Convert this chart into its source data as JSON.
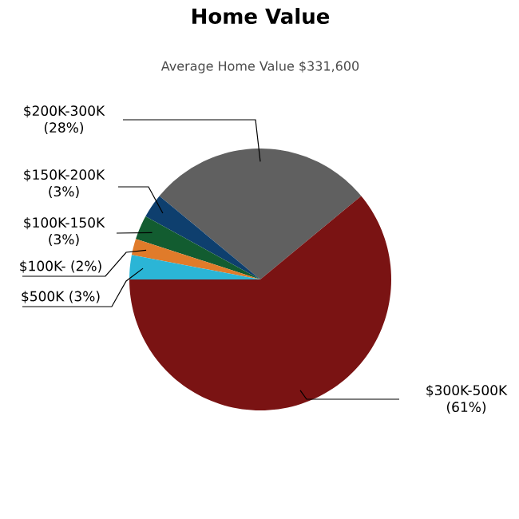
{
  "chart_data": {
    "type": "pie",
    "title": "Home Value",
    "subtitle": "Average Home Value  $331,600",
    "categories": [
      "$200K-300K",
      "$150K-200K",
      "$100K-150K",
      "$100K-",
      "$500K",
      "$300K-500K"
    ],
    "values": [
      28,
      3,
      3,
      2,
      3,
      61
    ],
    "colors": [
      "#606060",
      "#0e3f6e",
      "#125c30",
      "#e07b2a",
      "#2bb5d6",
      "#7a1313"
    ],
    "value_labels": [
      "(28%)",
      "(3%)",
      "(3%)",
      "(2%)",
      "(3%)",
      "(61%)"
    ]
  }
}
